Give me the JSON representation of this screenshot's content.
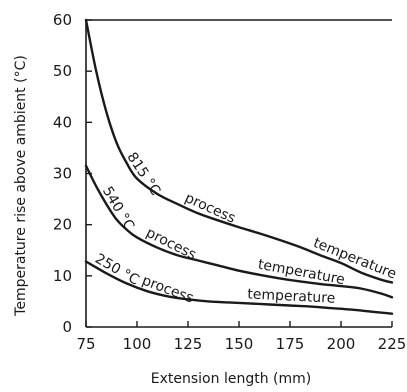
{
  "chart_data": {
    "type": "line",
    "xlabel": "Extension length (mm)",
    "ylabel": "Temperature rise above ambient (°C)",
    "xlim": [
      75,
      225
    ],
    "ylim": [
      0,
      60
    ],
    "x_ticks": [
      75,
      100,
      125,
      150,
      175,
      200,
      225
    ],
    "y_ticks": [
      0,
      10,
      20,
      30,
      40,
      50,
      60
    ],
    "x_tick_labels": [
      "75",
      "100",
      "125",
      "150",
      "175",
      "200",
      "225"
    ],
    "y_tick_labels": [
      "0",
      "10",
      "20",
      "30",
      "40",
      "50",
      "60"
    ],
    "grid": false,
    "legend": "none",
    "series": [
      {
        "name": "815 °C process temperature",
        "label_words": [
          "815 °C",
          "process",
          "temperature"
        ],
        "x": [
          75,
          80,
          85,
          90,
          95,
          100,
          110,
          120,
          130,
          140,
          150,
          160,
          170,
          180,
          190,
          200,
          210,
          220,
          225
        ],
        "y": [
          60,
          50,
          42,
          36,
          32,
          29,
          26,
          24,
          22.2,
          20.8,
          19.5,
          18.3,
          17.0,
          15.6,
          14.0,
          12.5,
          10.6,
          9.2,
          8.7
        ]
      },
      {
        "name": "540 °C process temperature",
        "label_words": [
          "540 °C",
          "process",
          "temperature"
        ],
        "x": [
          75,
          80,
          85,
          90,
          95,
          100,
          110,
          120,
          130,
          140,
          150,
          160,
          170,
          180,
          190,
          200,
          210,
          220,
          225
        ],
        "y": [
          31.5,
          27.5,
          24.0,
          21.0,
          19.0,
          17.5,
          15.5,
          14.0,
          13.0,
          12.0,
          11.0,
          10.2,
          9.5,
          8.9,
          8.4,
          8.0,
          7.5,
          6.5,
          5.8
        ]
      },
      {
        "name": "250 °C process temperature",
        "label_words": [
          "250 °C",
          "process",
          "temperature"
        ],
        "x": [
          75,
          85,
          95,
          105,
          115,
          125,
          135,
          145,
          155,
          165,
          175,
          185,
          195,
          205,
          215,
          225
        ],
        "y": [
          12.8,
          10.5,
          8.5,
          7.0,
          6.0,
          5.4,
          5.0,
          4.8,
          4.6,
          4.4,
          4.2,
          4.0,
          3.7,
          3.4,
          3.0,
          2.6
        ]
      }
    ]
  }
}
